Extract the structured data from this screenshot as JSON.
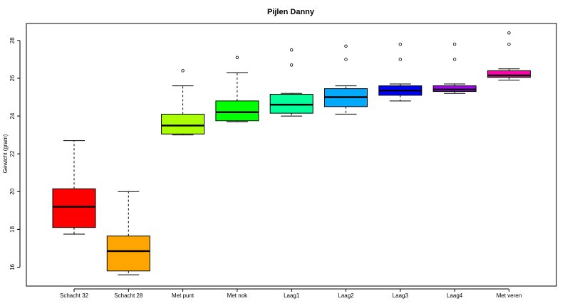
{
  "chart_data": {
    "type": "boxplot",
    "title": "Pijlen Danny",
    "xlabel": "",
    "ylabel": "Gewicht (gram)",
    "ylim": [
      15.0,
      28.9
    ],
    "yticks": [
      16,
      18,
      20,
      22,
      24,
      26,
      28
    ],
    "grid": false,
    "legend": "none",
    "categories": [
      "Schacht 32",
      "Schacht 28",
      "Met punt",
      "Met nok",
      "Laag1",
      "Laag2",
      "Laag3",
      "Laag4",
      "Met veren"
    ],
    "boxes": [
      {
        "label": "Schacht 32",
        "color": "#ff0000",
        "min": 17.75,
        "q1": 18.1,
        "median": 19.2,
        "q3": 20.15,
        "max": 22.7,
        "outliers": []
      },
      {
        "label": "Schacht 28",
        "color": "#ffa500",
        "min": 15.6,
        "q1": 15.8,
        "median": 16.85,
        "q3": 17.65,
        "max": 20.0,
        "outliers": []
      },
      {
        "label": "Met punt",
        "color": "#aaff00",
        "min": 23.0,
        "q1": 23.05,
        "median": 23.5,
        "q3": 24.1,
        "max": 25.6,
        "outliers": [
          26.4
        ]
      },
      {
        "label": "Met nok",
        "color": "#00ff00",
        "min": 23.7,
        "q1": 23.75,
        "median": 24.2,
        "q3": 24.8,
        "max": 26.3,
        "outliers": [
          27.1
        ]
      },
      {
        "label": "Laag1",
        "color": "#00ff99",
        "min": 24.0,
        "q1": 24.15,
        "median": 24.6,
        "q3": 25.15,
        "max": 25.2,
        "outliers": [
          26.7,
          27.5
        ]
      },
      {
        "label": "Laag2",
        "color": "#00aaff",
        "min": 24.1,
        "q1": 24.5,
        "median": 25.0,
        "q3": 25.45,
        "max": 25.6,
        "outliers": [
          27.0,
          27.7
        ]
      },
      {
        "label": "Laag3",
        "color": "#0000ff",
        "min": 24.8,
        "q1": 25.1,
        "median": 25.35,
        "q3": 25.6,
        "max": 25.7,
        "outliers": [
          27.0,
          27.8
        ]
      },
      {
        "label": "Laag4",
        "color": "#aa00ff",
        "min": 25.2,
        "q1": 25.3,
        "median": 25.4,
        "q3": 25.6,
        "max": 25.7,
        "outliers": [
          27.0,
          27.8
        ]
      },
      {
        "label": "Met veren",
        "color": "#ff00aa",
        "min": 25.9,
        "q1": 26.05,
        "median": 26.15,
        "q3": 26.4,
        "max": 26.5,
        "outliers": [
          27.8,
          28.4
        ]
      }
    ]
  }
}
